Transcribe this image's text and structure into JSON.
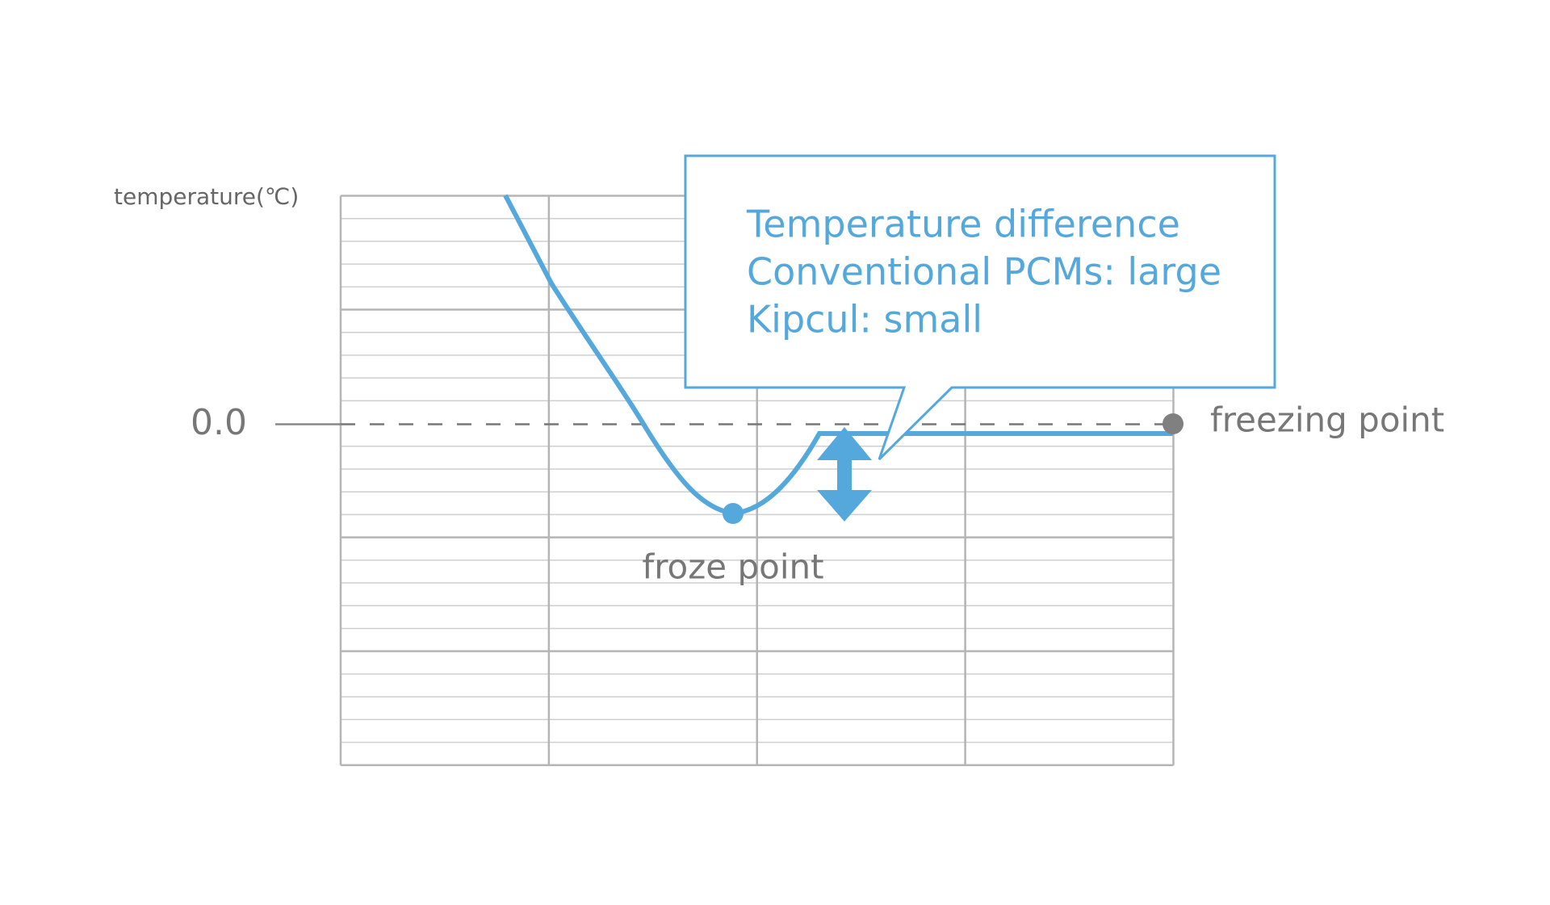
{
  "y_axis_label": "temperature(℃)",
  "zero_label": "0.0",
  "freezing_point_label": "freezing point",
  "froze_point_label": "froze point",
  "callout": {
    "lines": [
      "Temperature difference",
      "Conventional PCMs: large",
      "Kipcul: small"
    ]
  }
}
